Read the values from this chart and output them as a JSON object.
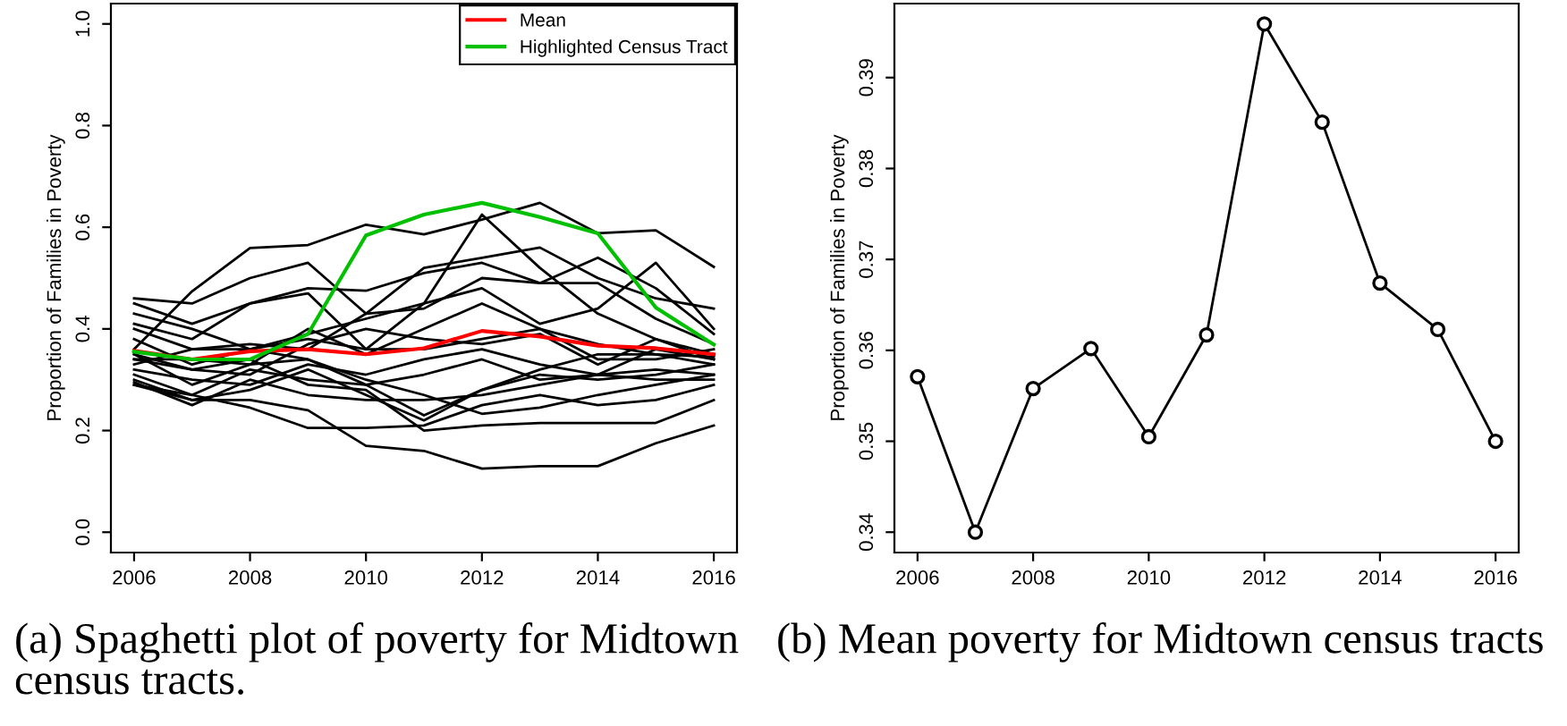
{
  "chart_data": [
    {
      "type": "line",
      "ylabel": "Proportion of Families in Poverty",
      "x": [
        2006,
        2007,
        2008,
        2009,
        2010,
        2011,
        2012,
        2013,
        2014,
        2015,
        2016
      ],
      "xlim": [
        2005.6,
        2016.4
      ],
      "xticks": [
        2006,
        2008,
        2010,
        2012,
        2014,
        2016
      ],
      "ylim": [
        -0.04,
        1.04
      ],
      "yticks": [
        {
          "value": 0,
          "label": "0.0"
        },
        0.2,
        0.4,
        0.6,
        0.8,
        {
          "value": 1,
          "label": "1.0"
        }
      ],
      "legend": "top right",
      "grid": false,
      "marker": "none",
      "line_style": "solid",
      "annotations": [
        "(a) Spaghetti plot of poverty for Midtown census tracts."
      ],
      "series": [
        {
          "color": "#000000",
          "values": [
            0.36,
            0.474,
            0.559,
            0.565,
            0.605,
            0.586,
            0.615,
            0.648,
            0.588,
            0.594,
            0.522
          ]
        },
        {
          "color": "#000000",
          "values": [
            0.41,
            0.38,
            0.45,
            0.47,
            0.36,
            0.45,
            0.625,
            0.52,
            0.43,
            0.38,
            0.34
          ]
        },
        {
          "color": "#000000",
          "values": [
            0.46,
            0.45,
            0.5,
            0.53,
            0.43,
            0.52,
            0.54,
            0.56,
            0.5,
            0.46,
            0.44
          ]
        },
        {
          "color": "#000000",
          "values": [
            0.45,
            0.41,
            0.45,
            0.48,
            0.475,
            0.51,
            0.53,
            0.49,
            0.54,
            0.48,
            0.39
          ]
        },
        {
          "color": "#000000",
          "values": [
            0.4,
            0.36,
            0.37,
            0.36,
            0.43,
            0.44,
            0.5,
            0.49,
            0.49,
            0.42,
            0.37
          ]
        },
        {
          "color": "#000000",
          "values": [
            0.38,
            0.33,
            0.36,
            0.39,
            0.42,
            0.45,
            0.48,
            0.41,
            0.44,
            0.53,
            0.4
          ]
        },
        {
          "color": "#000000",
          "values": [
            0.35,
            0.29,
            0.33,
            0.4,
            0.35,
            0.4,
            0.45,
            0.4,
            0.34,
            0.34,
            0.36
          ]
        },
        {
          "color": "#000000",
          "values": [
            0.34,
            0.32,
            0.31,
            0.37,
            0.4,
            0.38,
            0.37,
            0.39,
            0.33,
            0.38,
            0.35
          ]
        },
        {
          "color": "#000000",
          "values": [
            0.33,
            0.36,
            0.36,
            0.38,
            0.36,
            0.36,
            0.38,
            0.4,
            0.37,
            0.35,
            0.33
          ]
        },
        {
          "color": "#000000",
          "values": [
            0.32,
            0.3,
            0.29,
            0.33,
            0.31,
            0.34,
            0.36,
            0.33,
            0.31,
            0.36,
            0.34
          ]
        },
        {
          "color": "#000000",
          "values": [
            0.31,
            0.27,
            0.32,
            0.3,
            0.29,
            0.31,
            0.34,
            0.3,
            0.31,
            0.32,
            0.31
          ]
        },
        {
          "color": "#000000",
          "values": [
            0.3,
            0.26,
            0.28,
            0.32,
            0.27,
            0.22,
            0.28,
            0.31,
            0.3,
            0.31,
            0.33
          ]
        },
        {
          "color": "#000000",
          "values": [
            0.295,
            0.25,
            0.3,
            0.27,
            0.26,
            0.26,
            0.27,
            0.29,
            0.31,
            0.3,
            0.3
          ]
        },
        {
          "color": "#000000",
          "values": [
            0.29,
            0.27,
            0.245,
            0.205,
            0.205,
            0.21,
            0.25,
            0.27,
            0.25,
            0.26,
            0.29
          ]
        },
        {
          "color": "#000000",
          "values": [
            0.29,
            0.26,
            0.26,
            0.24,
            0.17,
            0.16,
            0.125,
            0.13,
            0.13,
            0.175,
            0.21
          ]
        },
        {
          "color": "#000000",
          "values": [
            0.35,
            0.32,
            0.34,
            0.29,
            0.28,
            0.2,
            0.21,
            0.215,
            0.215,
            0.215,
            0.26
          ]
        },
        {
          "color": "#000000",
          "values": [
            0.34,
            0.34,
            0.33,
            0.34,
            0.3,
            0.27,
            0.233,
            0.245,
            0.27,
            0.29,
            0.31
          ]
        },
        {
          "color": "#000000",
          "values": [
            0.43,
            0.4,
            0.36,
            0.34,
            0.29,
            0.23,
            0.28,
            0.32,
            0.35,
            0.35,
            0.345
          ]
        },
        {
          "name": "Mean",
          "color": "#ff0000",
          "values": [
            0.357,
            0.34,
            0.356,
            0.36,
            0.35,
            0.362,
            0.396,
            0.385,
            0.367,
            0.362,
            0.35
          ]
        },
        {
          "name": "Highlighted Census Tract",
          "color": "#00c000",
          "values": [
            0.355,
            0.34,
            0.34,
            0.39,
            0.584,
            0.625,
            0.648,
            0.62,
            0.588,
            0.442,
            0.369
          ]
        }
      ]
    },
    {
      "type": "line",
      "ylabel": "Proportion of Families in Poverty",
      "x": [
        2006,
        2007,
        2008,
        2009,
        2010,
        2011,
        2012,
        2013,
        2014,
        2015,
        2016
      ],
      "xlim": [
        2005.6,
        2016.4
      ],
      "xticks": [
        2006,
        2008,
        2010,
        2012,
        2014,
        2016
      ],
      "ylim": [
        0.33776,
        0.39814
      ],
      "yticks": [
        0.34,
        0.35,
        0.36,
        0.37,
        0.38,
        0.39
      ],
      "grid": false,
      "marker": "circle",
      "line_style": "solid",
      "annotations": [
        "(b) Mean poverty for Midtown census tracts"
      ],
      "series": [
        {
          "color": "#000000",
          "values": [
            0.3571,
            0.34,
            0.3558,
            0.3602,
            0.3505,
            0.3617,
            0.3959,
            0.3851,
            0.3674,
            0.3623,
            0.35
          ]
        }
      ]
    }
  ]
}
